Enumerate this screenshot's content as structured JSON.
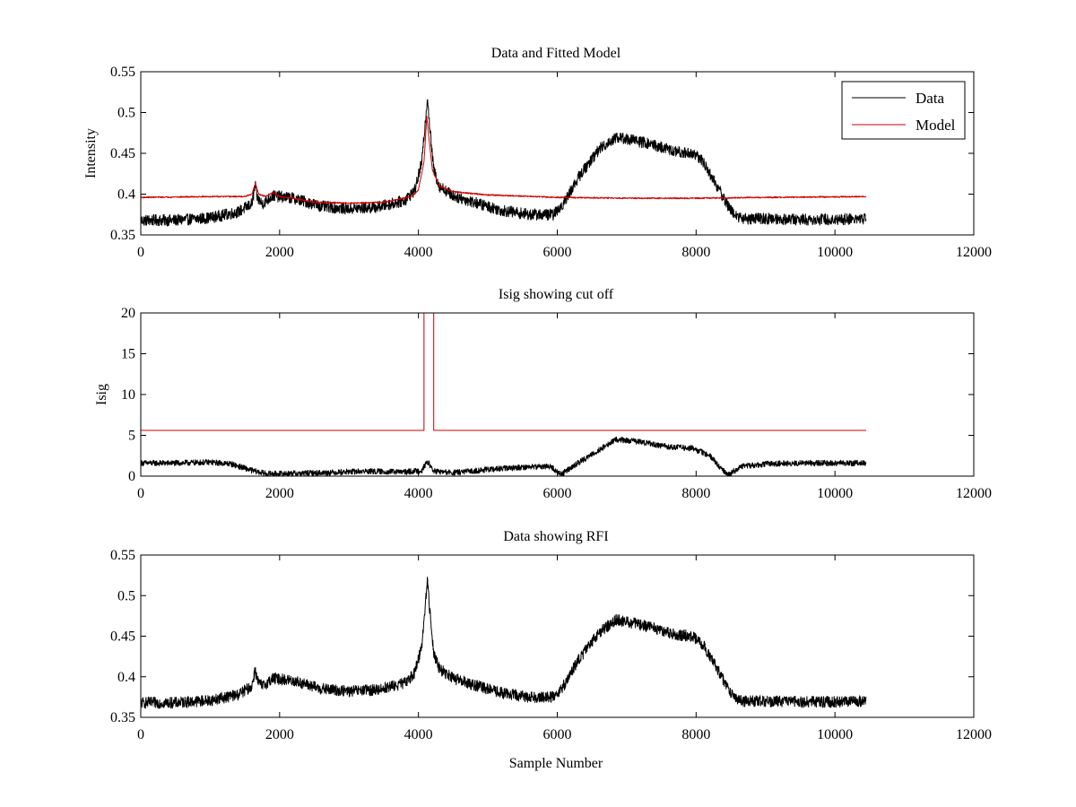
{
  "chart_data": [
    {
      "type": "line",
      "title": "Data and Fitted Model",
      "xlabel": "",
      "ylabel": "Intensity",
      "xlim": [
        0,
        12000
      ],
      "ylim": [
        0.35,
        0.55
      ],
      "xticks": [
        0,
        2000,
        4000,
        6000,
        8000,
        10000,
        12000
      ],
      "yticks": [
        0.35,
        0.4,
        0.45,
        0.5,
        0.55
      ],
      "xtick_labels": [
        "0",
        "2000",
        "4000",
        "6000",
        "8000",
        "10000",
        "12000"
      ],
      "ytick_labels": [
        "0.35",
        "0.4",
        "0.45",
        "0.5",
        "0.55"
      ],
      "legend": {
        "placement": "top-right",
        "entries": [
          "Data",
          "Model"
        ]
      },
      "grid": false,
      "series": [
        {
          "name": "Data",
          "color": "#000000",
          "noise": 0.007,
          "x": [
            0,
            500,
            1000,
            1400,
            1600,
            1650,
            1680,
            1750,
            1900,
            2200,
            2600,
            3000,
            3400,
            3800,
            3950,
            4050,
            4100,
            4130,
            4160,
            4220,
            4300,
            4500,
            4800,
            5200,
            5600,
            5950,
            6100,
            6300,
            6600,
            6850,
            7100,
            7400,
            7700,
            7950,
            8100,
            8300,
            8500,
            8650,
            9000,
            9500,
            10000,
            10450
          ],
          "y": [
            0.368,
            0.368,
            0.371,
            0.378,
            0.388,
            0.41,
            0.395,
            0.388,
            0.398,
            0.395,
            0.385,
            0.382,
            0.384,
            0.392,
            0.405,
            0.44,
            0.49,
            0.52,
            0.485,
            0.43,
            0.41,
            0.398,
            0.39,
            0.38,
            0.375,
            0.375,
            0.39,
            0.42,
            0.455,
            0.47,
            0.466,
            0.46,
            0.452,
            0.45,
            0.44,
            0.41,
            0.38,
            0.37,
            0.37,
            0.369,
            0.369,
            0.37
          ]
        },
        {
          "name": "Model",
          "color": "#cc0000",
          "noise": 0.0008,
          "x": [
            0,
            1000,
            1500,
            1600,
            1650,
            1700,
            1800,
            1900,
            2000,
            2200,
            2500,
            3000,
            3500,
            3900,
            4000,
            4080,
            4120,
            4150,
            4200,
            4300,
            4500,
            5000,
            6000,
            7000,
            8000,
            9000,
            10450
          ],
          "y": [
            0.396,
            0.397,
            0.397,
            0.4,
            0.413,
            0.4,
            0.397,
            0.402,
            0.397,
            0.395,
            0.39,
            0.389,
            0.39,
            0.397,
            0.405,
            0.44,
            0.495,
            0.47,
            0.43,
            0.41,
            0.403,
            0.399,
            0.396,
            0.395,
            0.395,
            0.396,
            0.397
          ]
        }
      ]
    },
    {
      "type": "line",
      "title": "Isig showing cut off",
      "xlabel": "",
      "ylabel": "Isig",
      "xlim": [
        0,
        12000
      ],
      "ylim": [
        0,
        20
      ],
      "xticks": [
        0,
        2000,
        4000,
        6000,
        8000,
        10000,
        12000
      ],
      "yticks": [
        0,
        5,
        10,
        15,
        20
      ],
      "xtick_labels": [
        "0",
        "2000",
        "4000",
        "6000",
        "8000",
        "10000",
        "12000"
      ],
      "ytick_labels": [
        "0",
        "5",
        "10",
        "15",
        "20"
      ],
      "grid": false,
      "series": [
        {
          "name": "",
          "color": "#000000",
          "noise": 0.35,
          "x": [
            0,
            500,
            1000,
            1300,
            1600,
            1800,
            2000,
            2600,
            3200,
            3800,
            4050,
            4130,
            4220,
            4500,
            5000,
            5500,
            5900,
            6050,
            6300,
            6600,
            6850,
            7200,
            7600,
            7950,
            8200,
            8450,
            8650,
            9000,
            9500,
            10000,
            10450
          ],
          "y": [
            1.6,
            1.6,
            1.7,
            1.5,
            0.7,
            0.3,
            0.3,
            0.4,
            0.6,
            0.5,
            0.7,
            1.8,
            0.6,
            0.4,
            0.8,
            1.1,
            1.2,
            0.2,
            1.6,
            3.2,
            4.5,
            4.2,
            3.6,
            3.4,
            2.5,
            0.1,
            1.2,
            1.5,
            1.6,
            1.6,
            1.6
          ]
        },
        {
          "name": "",
          "color": "#cc0000",
          "noise": 0,
          "x": [
            0,
            4080,
            4080,
            4220,
            4220,
            10450
          ],
          "y": [
            5.6,
            5.6,
            25,
            25,
            5.6,
            5.6
          ]
        }
      ]
    },
    {
      "type": "line",
      "title": "Data showing RFI",
      "xlabel": "Sample Number",
      "ylabel": "",
      "xlim": [
        0,
        12000
      ],
      "ylim": [
        0.35,
        0.55
      ],
      "xticks": [
        0,
        2000,
        4000,
        6000,
        8000,
        10000,
        12000
      ],
      "yticks": [
        0.35,
        0.4,
        0.45,
        0.5,
        0.55
      ],
      "xtick_labels": [
        "0",
        "2000",
        "4000",
        "6000",
        "8000",
        "10000",
        "12000"
      ],
      "ytick_labels": [
        "0.35",
        "0.4",
        "0.45",
        "0.5",
        "0.55"
      ],
      "grid": false,
      "series": [
        {
          "name": "",
          "color": "#000000",
          "noise": 0.007,
          "x": [
            0,
            500,
            1000,
            1400,
            1600,
            1650,
            1680,
            1750,
            1900,
            2200,
            2600,
            3000,
            3400,
            3800,
            3950,
            4050,
            4100,
            4130,
            4160,
            4220,
            4300,
            4500,
            4800,
            5200,
            5600,
            5950,
            6100,
            6300,
            6600,
            6850,
            7100,
            7400,
            7700,
            7950,
            8100,
            8300,
            8500,
            8650,
            9000,
            9500,
            10000,
            10450
          ],
          "y": [
            0.368,
            0.368,
            0.371,
            0.378,
            0.388,
            0.41,
            0.395,
            0.388,
            0.398,
            0.395,
            0.385,
            0.382,
            0.384,
            0.392,
            0.405,
            0.44,
            0.49,
            0.52,
            0.485,
            0.43,
            0.41,
            0.398,
            0.39,
            0.38,
            0.375,
            0.375,
            0.39,
            0.42,
            0.455,
            0.47,
            0.466,
            0.46,
            0.452,
            0.45,
            0.44,
            0.41,
            0.38,
            0.37,
            0.37,
            0.369,
            0.369,
            0.37
          ]
        }
      ]
    }
  ]
}
